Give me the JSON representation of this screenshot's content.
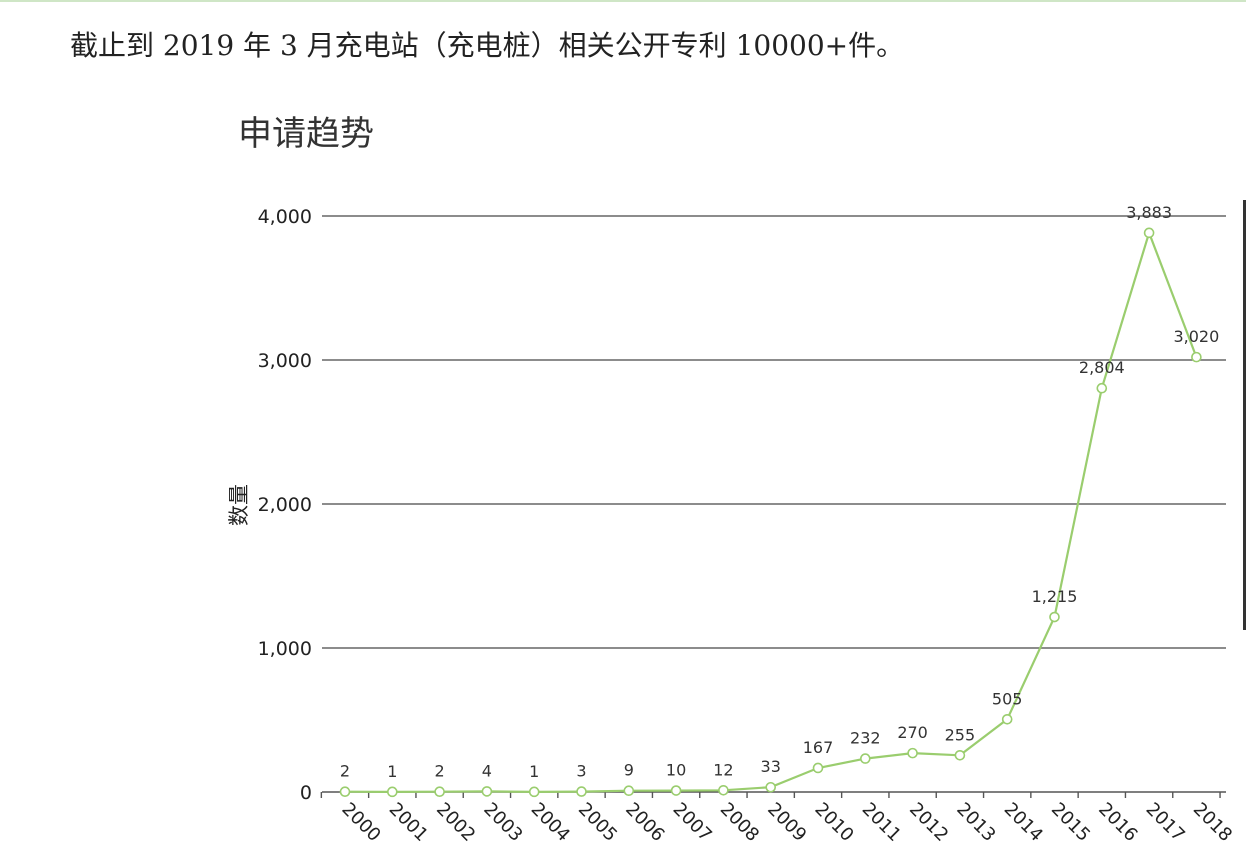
{
  "intro_text": "截止到 2019 年 3 月充电站（充电桩）相关公开专利 10000+件。",
  "chart_data": {
    "type": "line",
    "title": "申请趋势",
    "xlabel": "",
    "ylabel": "数量",
    "ylim": [
      0,
      4000
    ],
    "yticks": [
      0,
      1000,
      2000,
      3000,
      4000
    ],
    "ytick_labels": [
      "0",
      "1,000",
      "2,000",
      "3,000",
      "4,000"
    ],
    "grid": true,
    "categories": [
      "2000",
      "2001",
      "2002",
      "2003",
      "2004",
      "2005",
      "2006",
      "2007",
      "2008",
      "2009",
      "2010",
      "2011",
      "2012",
      "2013",
      "2014",
      "2015",
      "2016",
      "2017",
      "2018"
    ],
    "values": [
      2,
      1,
      2,
      4,
      1,
      3,
      9,
      10,
      12,
      33,
      167,
      232,
      270,
      255,
      505,
      1215,
      2804,
      3883,
      3020
    ],
    "data_labels": [
      "2",
      "1",
      "2",
      "4",
      "1",
      "3",
      "9",
      "10",
      "12",
      "33",
      "167",
      "232",
      "270",
      "255",
      "505",
      "1,215",
      "2,804",
      "3,883",
      "3,020"
    ],
    "line_color": "#9acd6e"
  }
}
